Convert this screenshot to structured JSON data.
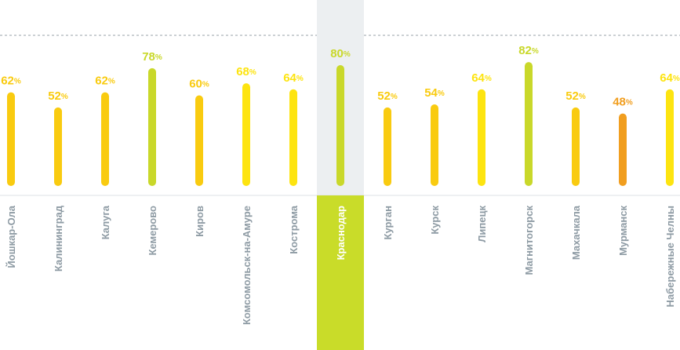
{
  "chart_data": {
    "type": "bar",
    "title": "",
    "xlabel": "",
    "ylabel": "",
    "unit": "%",
    "ylim": [
      0,
      100
    ],
    "grid": false,
    "highlighted_category": "Краснодар",
    "categories": [
      "Йошкар-Ола",
      "Калининград",
      "Калуга",
      "Кемерово",
      "Киров",
      "Комсомольск-на-Амуре",
      "Кострома",
      "Краснодар",
      "Курган",
      "Курск",
      "Липецк",
      "Магнитогорск",
      "Махачкала",
      "Мурманск",
      "Набережные Челны"
    ],
    "values": [
      62,
      52,
      62,
      78,
      60,
      68,
      64,
      80,
      52,
      54,
      64,
      82,
      52,
      48,
      64
    ],
    "value_labels": [
      "62",
      "52",
      "62",
      "78",
      "60",
      "68",
      "64",
      "80",
      "52",
      "54",
      "64",
      "82",
      "52",
      "48",
      "64"
    ],
    "bar_colors": [
      "#F9CB10",
      "#F9CB10",
      "#F9CB10",
      "#C9D82A",
      "#F9CB10",
      "#FDE410",
      "#FDE410",
      "#C9D82A",
      "#F9CB10",
      "#F9CB10",
      "#FDE410",
      "#C9D82A",
      "#F9CB10",
      "#F19E1F",
      "#FDE410"
    ]
  },
  "colors": {
    "highlight_band": "#ECEFF1",
    "highlight_label_bg": "#C9DC29",
    "highlight_label_text": "#FFFFFF",
    "category_text": "#8E9BA4",
    "baseline": "#DDE2E5",
    "reference_line": "#9AA3A9"
  }
}
